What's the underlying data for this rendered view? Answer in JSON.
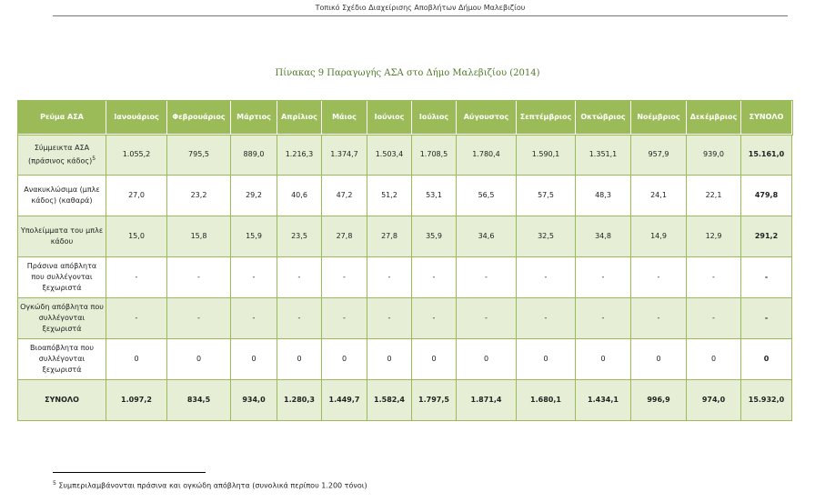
{
  "header": "Τοπικό Σχέδιο Διαχείρισης Αποβλήτων Δήμου Μαλεβιζίου",
  "caption": "Πίνακας 9 Παραγωγής ΑΣΑ στο Δήμο Μαλεβιζίου (2014)",
  "table": {
    "columns": [
      "Ρεύμα ΑΣΑ",
      "Ιανουάριος",
      "Φεβρουάριος",
      "Μάρτιος",
      "Απρίλιος",
      "Μάιος",
      "Ιούνιος",
      "Ιούλιος",
      "Αύγουστος",
      "Σεπτέμβριος",
      "Οκτώβριος",
      "Νοέμβριος",
      "Δεκέμβριος",
      "ΣΥΝΟΛΟ"
    ],
    "rows": [
      {
        "label": "Σύμμεικτα ΑΣΑ (πράσινος κάδος)",
        "sup": "5",
        "values": [
          "1.055,2",
          "795,5",
          "889,0",
          "1.216,3",
          "1.374,7",
          "1.503,4",
          "1.708,5",
          "1.780,4",
          "1.590,1",
          "1.351,1",
          "957,9",
          "939,0"
        ],
        "total": "15.161,0"
      },
      {
        "label": "Ανακυκλώσιμα (μπλε κάδος) (καθαρά)",
        "values": [
          "27,0",
          "23,2",
          "29,2",
          "40,6",
          "47,2",
          "51,2",
          "53,1",
          "56,5",
          "57,5",
          "48,3",
          "24,1",
          "22,1"
        ],
        "total": "479,8"
      },
      {
        "label": "Υπολείμματα του μπλε κάδου",
        "values": [
          "15,0",
          "15,8",
          "15,9",
          "23,5",
          "27,8",
          "27,8",
          "35,9",
          "34,6",
          "32,5",
          "34,8",
          "14,9",
          "12,9"
        ],
        "total": "291,2"
      },
      {
        "label": "Πράσινα απόβλητα που συλλέγονται ξεχωριστά",
        "values": [
          "-",
          "-",
          "-",
          "-",
          "-",
          "-",
          "-",
          "-",
          "-",
          "-",
          "-",
          "-"
        ],
        "total": "-"
      },
      {
        "label": "Ογκώδη απόβλητα που συλλέγονται ξεχωριστά",
        "values": [
          "-",
          "-",
          "-",
          "-",
          "-",
          "-",
          "-",
          "-",
          "-",
          "-",
          "-",
          "-"
        ],
        "total": "-"
      },
      {
        "label": "Βιοαπόβλητα που συλλέγονται ξεχωριστά",
        "values": [
          "0",
          "0",
          "0",
          "0",
          "0",
          "0",
          "0",
          "0",
          "0",
          "0",
          "0",
          "0"
        ],
        "total": "0"
      }
    ],
    "total_row": {
      "label": "ΣΥΝΟΛΟ",
      "values": [
        "1.097,2",
        "834,5",
        "934,0",
        "1.280,3",
        "1.449,7",
        "1.582,4",
        "1.797,5",
        "1.871,4",
        "1.680,1",
        "1.434,1",
        "996,9",
        "974,0"
      ],
      "total": "15.932,0"
    }
  },
  "footnote": {
    "mark": "5",
    "text": "Συμπεριλαμβάνονται πράσινα και ογκώδη απόβλητα (συνολικά περίπου 1.200 τόνοι)"
  },
  "colors": {
    "header_bg": "#9bbb59",
    "alt_row_bg": "#e6eed5",
    "caption": "#4f7a28"
  }
}
